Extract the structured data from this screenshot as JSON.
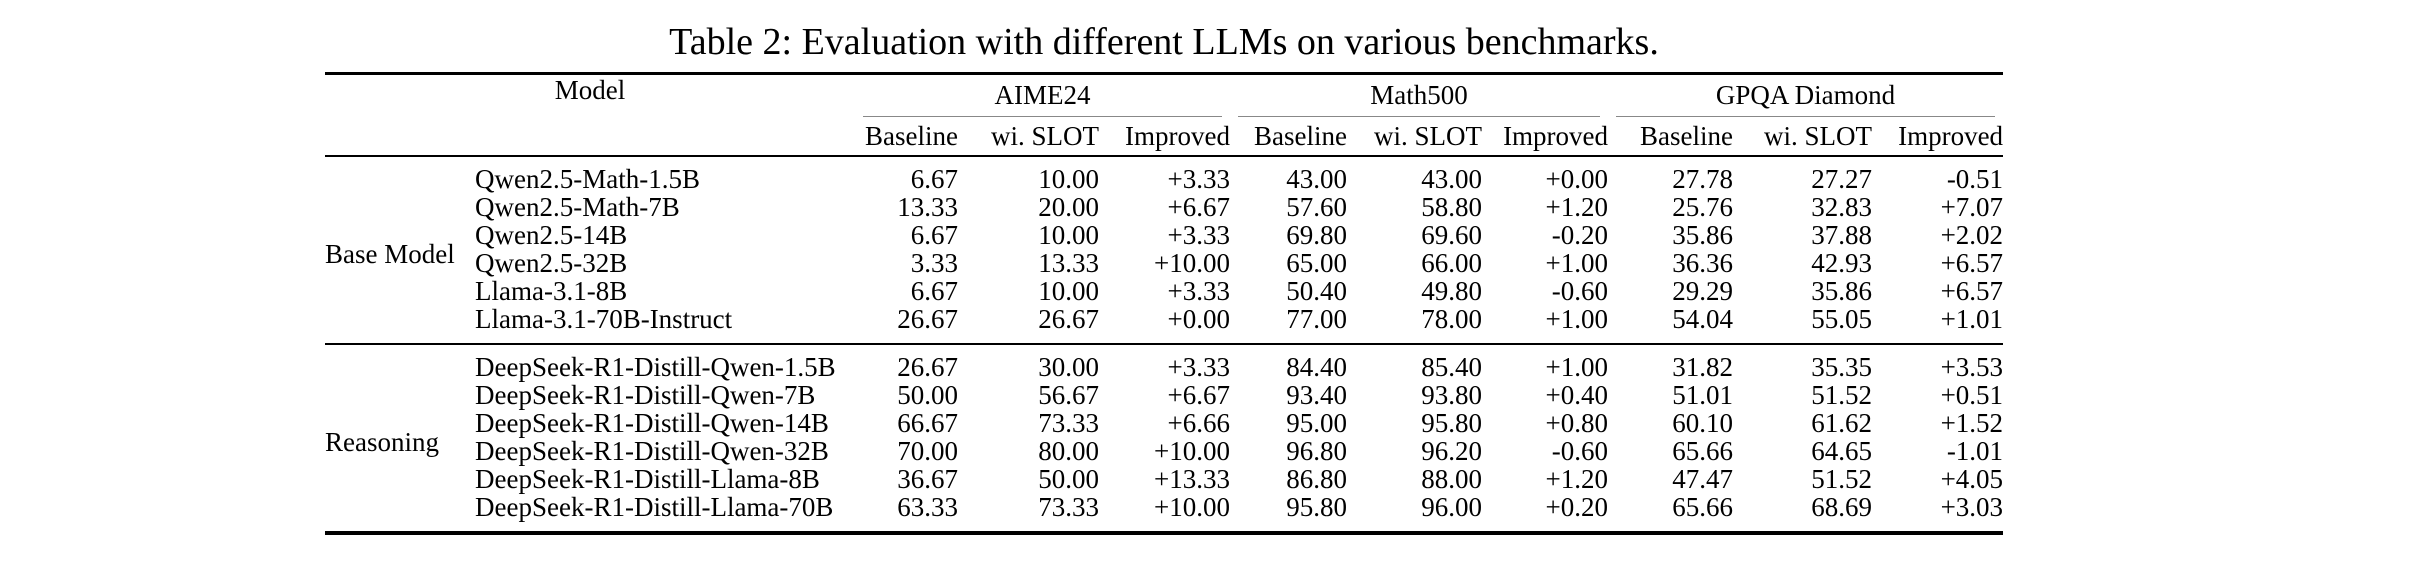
{
  "title": "Table 2: Evaluation with different LLMs on various benchmarks.",
  "table": {
    "model_column_header": "Model",
    "benchmark_groups": [
      "AIME24",
      "Math500",
      "GPQA Diamond"
    ],
    "metric_headers": [
      "Baseline",
      "wi. SLOT",
      "Improved"
    ],
    "rule_color": "#888888",
    "text_color": "#000000",
    "row_groups": [
      {
        "label": "Base Model",
        "rows": [
          {
            "model": "Qwen2.5-Math-1.5B",
            "aime24": [
              "6.67",
              "10.00",
              "+3.33"
            ],
            "math500": [
              "43.00",
              "43.00",
              "+0.00"
            ],
            "gpqa_diamond": [
              "27.78",
              "27.27",
              "-0.51"
            ]
          },
          {
            "model": "Qwen2.5-Math-7B",
            "aime24": [
              "13.33",
              "20.00",
              "+6.67"
            ],
            "math500": [
              "57.60",
              "58.80",
              "+1.20"
            ],
            "gpqa_diamond": [
              "25.76",
              "32.83",
              "+7.07"
            ]
          },
          {
            "model": "Qwen2.5-14B",
            "aime24": [
              "6.67",
              "10.00",
              "+3.33"
            ],
            "math500": [
              "69.80",
              "69.60",
              "-0.20"
            ],
            "gpqa_diamond": [
              "35.86",
              "37.88",
              "+2.02"
            ]
          },
          {
            "model": "Qwen2.5-32B",
            "aime24": [
              "3.33",
              "13.33",
              "+10.00"
            ],
            "math500": [
              "65.00",
              "66.00",
              "+1.00"
            ],
            "gpqa_diamond": [
              "36.36",
              "42.93",
              "+6.57"
            ]
          },
          {
            "model": "Llama-3.1-8B",
            "aime24": [
              "6.67",
              "10.00",
              "+3.33"
            ],
            "math500": [
              "50.40",
              "49.80",
              "-0.60"
            ],
            "gpqa_diamond": [
              "29.29",
              "35.86",
              "+6.57"
            ]
          },
          {
            "model": "Llama-3.1-70B-Instruct",
            "aime24": [
              "26.67",
              "26.67",
              "+0.00"
            ],
            "math500": [
              "77.00",
              "78.00",
              "+1.00"
            ],
            "gpqa_diamond": [
              "54.04",
              "55.05",
              "+1.01"
            ]
          }
        ]
      },
      {
        "label": "Reasoning",
        "rows": [
          {
            "model": "DeepSeek-R1-Distill-Qwen-1.5B",
            "aime24": [
              "26.67",
              "30.00",
              "+3.33"
            ],
            "math500": [
              "84.40",
              "85.40",
              "+1.00"
            ],
            "gpqa_diamond": [
              "31.82",
              "35.35",
              "+3.53"
            ]
          },
          {
            "model": "DeepSeek-R1-Distill-Qwen-7B",
            "aime24": [
              "50.00",
              "56.67",
              "+6.67"
            ],
            "math500": [
              "93.40",
              "93.80",
              "+0.40"
            ],
            "gpqa_diamond": [
              "51.01",
              "51.52",
              "+0.51"
            ]
          },
          {
            "model": "DeepSeek-R1-Distill-Qwen-14B",
            "aime24": [
              "66.67",
              "73.33",
              "+6.66"
            ],
            "math500": [
              "95.00",
              "95.80",
              "+0.80"
            ],
            "gpqa_diamond": [
              "60.10",
              "61.62",
              "+1.52"
            ]
          },
          {
            "model": "DeepSeek-R1-Distill-Qwen-32B",
            "aime24": [
              "70.00",
              "80.00",
              "+10.00"
            ],
            "math500": [
              "96.80",
              "96.20",
              "-0.60"
            ],
            "gpqa_diamond": [
              "65.66",
              "64.65",
              "-1.01"
            ]
          },
          {
            "model": "DeepSeek-R1-Distill-Llama-8B",
            "aime24": [
              "36.67",
              "50.00",
              "+13.33"
            ],
            "math500": [
              "86.80",
              "88.00",
              "+1.20"
            ],
            "gpqa_diamond": [
              "47.47",
              "51.52",
              "+4.05"
            ]
          },
          {
            "model": "DeepSeek-R1-Distill-Llama-70B",
            "aime24": [
              "63.33",
              "73.33",
              "+10.00"
            ],
            "math500": [
              "95.80",
              "96.00",
              "+0.20"
            ],
            "gpqa_diamond": [
              "65.66",
              "68.69",
              "+3.03"
            ]
          }
        ]
      }
    ]
  }
}
